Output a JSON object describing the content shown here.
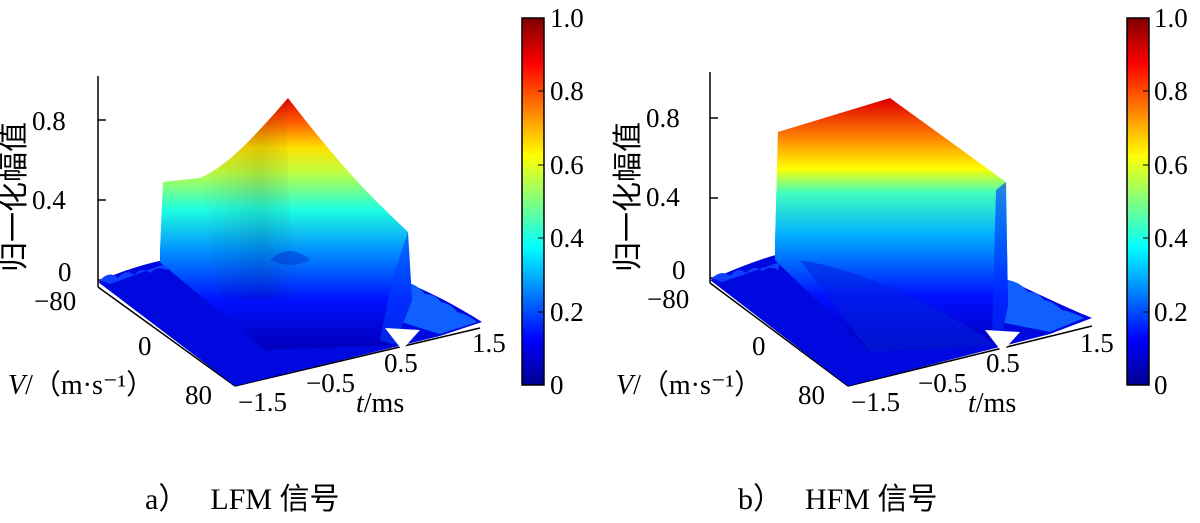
{
  "chart_data": [
    {
      "type": "surface3d",
      "panel": "a",
      "caption_tag": "a）",
      "caption_title": "LFM 信号",
      "zlabel": "归一化幅值",
      "ylabel_var": "V",
      "ylabel_unit": "（m·s⁻¹）",
      "xlabel_var": "t",
      "xlabel_unit": "/ms",
      "z_ticks": [
        "0.8",
        "0.4",
        "0"
      ],
      "v_ticks": [
        "−80",
        "0",
        "80"
      ],
      "t_ticks": [
        "−1.5",
        "−0.5",
        "0.5",
        "1.5"
      ],
      "z_range": [
        0,
        1
      ],
      "v_range": [
        -80,
        80
      ],
      "t_range": [
        -1.5,
        1.5
      ],
      "peak": {
        "t": 0.2,
        "v": -80,
        "z": 0.9
      },
      "colorbar": {
        "ticks": [
          "1.0",
          "0.8",
          "0.6",
          "0.4",
          "0.2",
          "0"
        ],
        "colormap": "jet",
        "range": [
          0,
          1
        ]
      }
    },
    {
      "type": "surface3d",
      "panel": "b",
      "caption_tag": "b）",
      "caption_title": "HFM 信号",
      "zlabel": "归一化幅值",
      "ylabel_var": "V",
      "ylabel_unit": "（m·s⁻¹）",
      "xlabel_var": "t",
      "xlabel_unit": "/ms",
      "z_ticks": [
        "0.8",
        "0.4",
        "0"
      ],
      "v_ticks": [
        "−80",
        "0",
        "80"
      ],
      "t_ticks": [
        "−1.5",
        "−0.5",
        "0.5",
        "1.5"
      ],
      "z_range": [
        0,
        1
      ],
      "v_range": [
        -80,
        80
      ],
      "t_range": [
        -1.5,
        1.5
      ],
      "ridge_values": [
        0.72,
        0.9,
        0.65
      ],
      "colorbar": {
        "ticks": [
          "1.0",
          "0.8",
          "0.6",
          "0.4",
          "0.2",
          "0"
        ],
        "colormap": "jet",
        "range": [
          0,
          1
        ]
      }
    }
  ],
  "colors": {
    "jet": [
      "#00008f",
      "#0000ff",
      "#0080ff",
      "#00ffff",
      "#80ff80",
      "#ffff00",
      "#ff8000",
      "#ff0000",
      "#800000"
    ]
  }
}
